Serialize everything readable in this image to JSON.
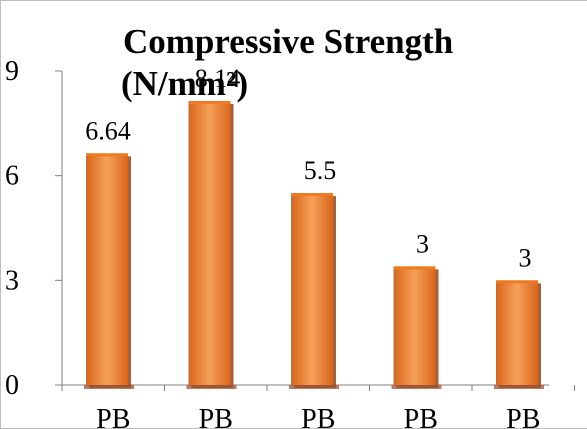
{
  "chart_data": {
    "type": "bar",
    "title_lines": [
      "Compressive Strength",
      "(N/mm²)"
    ],
    "categories": [
      "PB",
      "PB",
      "PB",
      "PB",
      "PB"
    ],
    "values": [
      6.64,
      8.14,
      5.5,
      3.4,
      3.0
    ],
    "data_labels": [
      "6.64",
      "8.14",
      "5.5",
      "3",
      "3"
    ],
    "y_ticks": [
      "0",
      "3",
      "6",
      "9"
    ],
    "ylim": [
      0,
      9
    ],
    "xlabel": "",
    "ylabel": "",
    "grid": false,
    "legend": "none",
    "colors": {
      "bar_top": "#ef7a22",
      "bar_mid": "#f5a05a",
      "bar_bottom": "#d9661a",
      "bar_shadow": "#8a4a2a",
      "base_shadow": "#a0522d",
      "axis": "#808080"
    }
  }
}
